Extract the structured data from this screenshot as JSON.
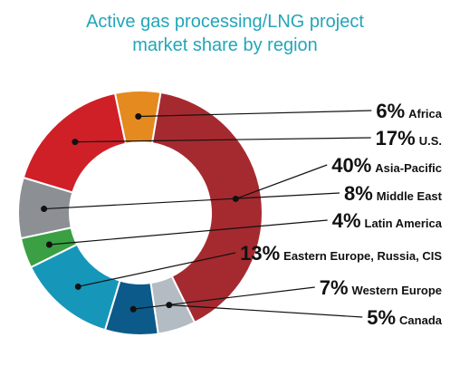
{
  "chart_data": {
    "type": "pie",
    "variant": "donut",
    "title": [
      "Active gas processing/LNG project",
      "market share by region"
    ],
    "slices": [
      {
        "label": "Africa",
        "value": 6,
        "pct_text": "6%",
        "color": "#e58a1f"
      },
      {
        "label": "Asia-Pacific",
        "value": 40,
        "pct_text": "40%",
        "color": "#a52a30"
      },
      {
        "label": "Canada",
        "value": 5,
        "pct_text": "5%",
        "color": "#b3bcc2"
      },
      {
        "label": "Western Europe",
        "value": 7,
        "pct_text": "7%",
        "color": "#0c5a8a"
      },
      {
        "label": "Eastern Europe, Russia, CIS",
        "value": 13,
        "pct_text": "13%",
        "color": "#1697b9"
      },
      {
        "label": "Latin America",
        "value": 4,
        "pct_text": "4%",
        "color": "#3aa043"
      },
      {
        "label": "Middle East",
        "value": 8,
        "pct_text": "8%",
        "color": "#8c9094"
      },
      {
        "label": "U.S.",
        "value": 17,
        "pct_text": "17%",
        "color": "#cf2027"
      }
    ],
    "legend_order": [
      "Africa",
      "U.S.",
      "Asia-Pacific",
      "Middle East",
      "Latin America",
      "Eastern Europe, Russia, CIS",
      "Western Europe",
      "Canada"
    ],
    "legend_placement": "right"
  }
}
